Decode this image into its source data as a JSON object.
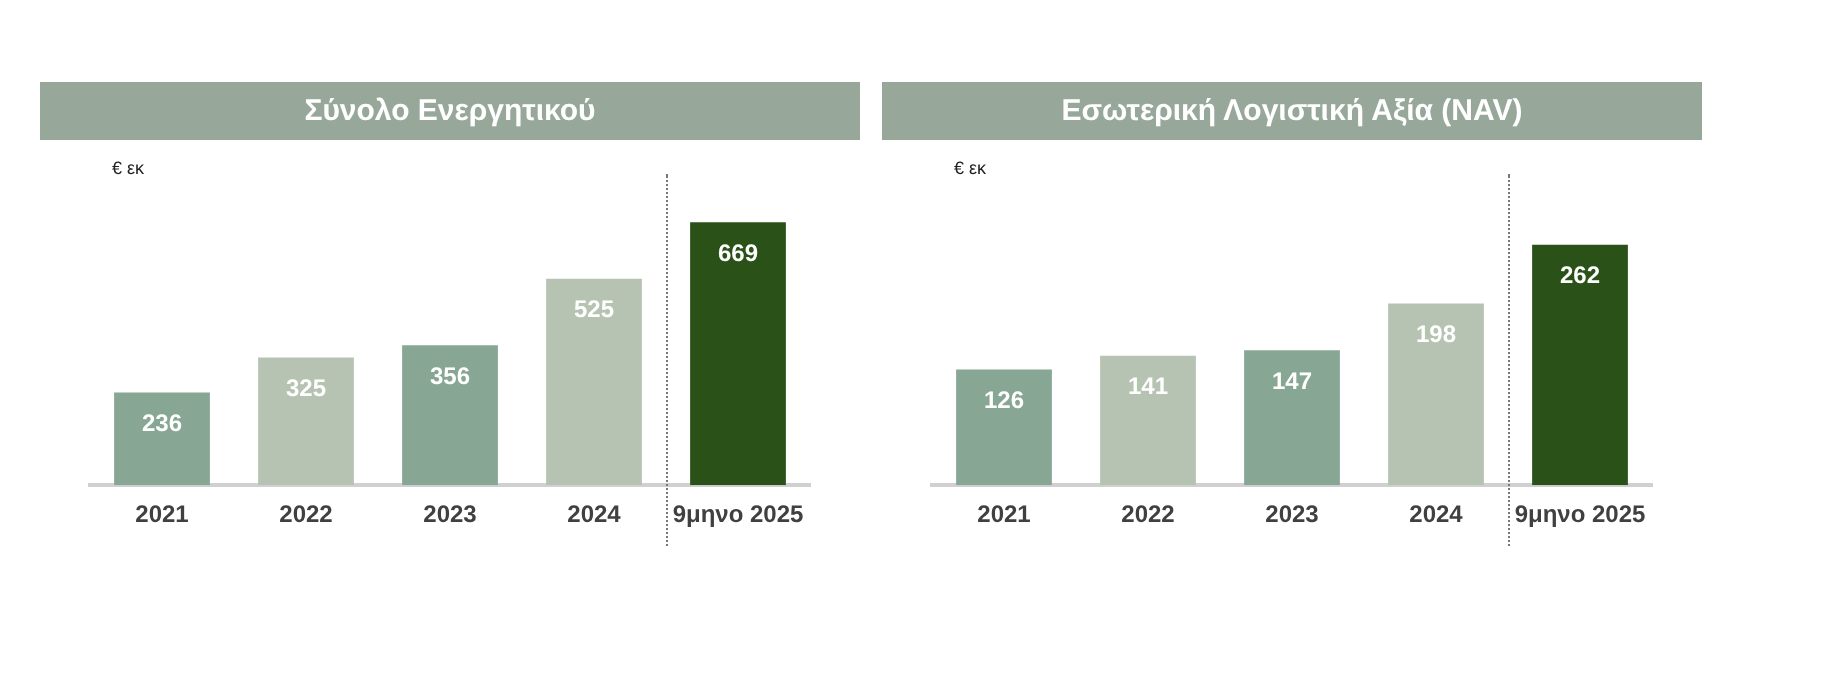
{
  "chart_data": [
    {
      "type": "bar",
      "title": "Σύνολο Ενεργητικού",
      "ylabel": "€ εκ",
      "categories": [
        "2021",
        "2022",
        "2023",
        "2024",
        "9μηνο 2025"
      ],
      "values": [
        236,
        325,
        356,
        525,
        669
      ],
      "colors": [
        "#87a693",
        "#b6c3b2",
        "#87a693",
        "#b6c3b2",
        "#2a5218"
      ],
      "data_labels": true,
      "tick_labels": "x",
      "grid": false,
      "legend": false
    },
    {
      "type": "bar",
      "title": "Εσωτερική Λογιστική Αξία (NAV)",
      "ylabel": "€ εκ",
      "categories": [
        "2021",
        "2022",
        "2023",
        "2024",
        "9μηνο 2025"
      ],
      "values": [
        126,
        141,
        147,
        198,
        262
      ],
      "colors": [
        "#87a693",
        "#b6c3b2",
        "#87a693",
        "#b6c3b2",
        "#2a5218"
      ],
      "data_labels": true,
      "tick_labels": "x",
      "grid": false,
      "legend": false
    }
  ]
}
